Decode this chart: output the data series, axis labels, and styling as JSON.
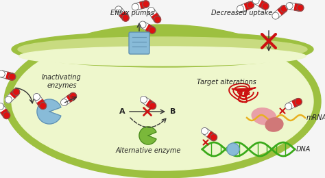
{
  "bg_outer": "#f5f5f5",
  "cell_outer_color": "#9dc040",
  "cell_inner_color": "#eef7cc",
  "cell_membrane_color": "#c8db80",
  "text_color": "#222222",
  "red_color": "#cc1111",
  "blue_color": "#88bbd8",
  "blue_dark": "#6090b0",
  "green_color": "#7ab83a",
  "pink_color": "#e8a0a8",
  "pink_dark": "#d07878",
  "yellow_color": "#e8b020",
  "label_efflux": "Efflux pumps",
  "label_decreased": "Decreased uptake",
  "label_inactivating": "Inactivating\nenzymes",
  "label_alternative": "Alternative enzyme",
  "label_target": "Target alterations",
  "label_mRNA": "mRNA",
  "label_DNA": "DNA",
  "label_A": "A",
  "label_B": "B",
  "figsize": [
    4.74,
    2.6
  ],
  "dpi": 100
}
